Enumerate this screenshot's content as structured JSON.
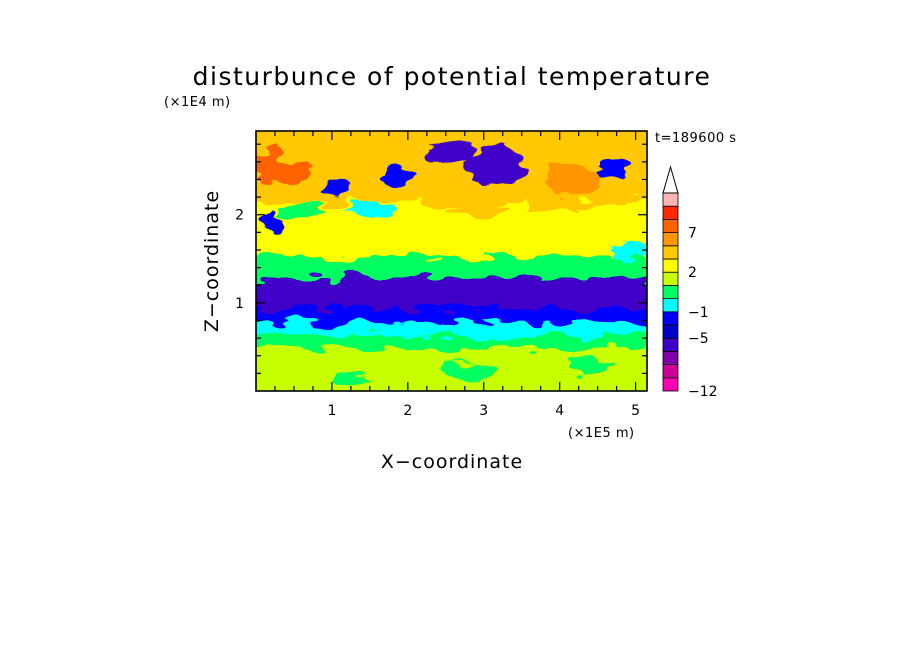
{
  "chart_data": {
    "type": "heatmap",
    "title": "disturbunce of potential temperature",
    "xlabel": "X−coordinate",
    "ylabel": "Z−coordinate",
    "x_unit": "(×1E5 m)",
    "y_unit": "(×1E4 m)",
    "timestamp": "t=189600 s",
    "xlim": [
      0,
      5.15
    ],
    "ylim": [
      0,
      2.95
    ],
    "x_ticks": [
      1,
      2,
      3,
      4,
      5
    ],
    "x_tick_labels": [
      "1",
      "2",
      "3",
      "4",
      "5"
    ],
    "y_ticks": [
      1,
      2
    ],
    "y_tick_labels": [
      "1",
      "2"
    ],
    "x_minor_step": 0.25,
    "y_minor_step": 0.2,
    "colorbar": {
      "levels": [
        -12,
        -11,
        -9,
        -7,
        -5,
        -3,
        -1,
        0,
        1,
        2,
        3,
        5,
        7,
        9,
        11
      ],
      "colors": [
        "#ff00b4",
        "#cc0099",
        "#7f00a8",
        "#3f00c8",
        "#0000c8",
        "#0000ff",
        "#00ffff",
        "#00ff60",
        "#c8ff00",
        "#ffff00",
        "#ffc800",
        "#ff9600",
        "#ff6400",
        "#ff2800",
        "#ffb4b4"
      ],
      "labeled_levels": [
        -12,
        -5,
        -1,
        2,
        7
      ],
      "labels": [
        "−12",
        "−5",
        "−1",
        "2",
        "7"
      ],
      "extend_top": true
    },
    "field_bands": [
      {
        "z_range": [
          0,
          0.15
        ],
        "value": 1.5
      },
      {
        "z_range": [
          0.15,
          0.55
        ],
        "value": 1.8
      },
      {
        "z_range": [
          0.55,
          0.7
        ],
        "value": 0.5
      },
      {
        "z_range": [
          0.7,
          0.85
        ],
        "value": -0.5
      },
      {
        "z_range": [
          0.85,
          1.0
        ],
        "value": -2
      },
      {
        "z_range": [
          1.0,
          1.35
        ],
        "value": -6
      },
      {
        "z_range": [
          1.35,
          1.6
        ],
        "value": 0.3
      },
      {
        "z_range": [
          1.6,
          2.2
        ],
        "value": 2.5
      },
      {
        "z_range": [
          2.2,
          2.95
        ],
        "value": 4
      }
    ]
  }
}
